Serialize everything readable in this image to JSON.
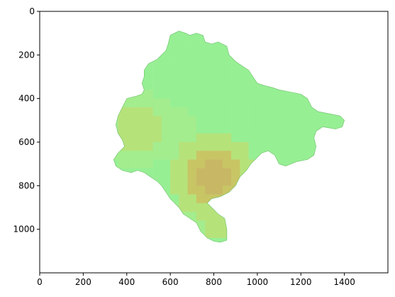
{
  "chart_data": {
    "type": "heatmap",
    "description_kind": "raster image with irregular land region",
    "xlim": [
      0,
      1600
    ],
    "ylim": [
      1200,
      0
    ],
    "x_ticks": [
      0,
      200,
      400,
      600,
      800,
      1000,
      1200,
      1400
    ],
    "y_ticks": [
      0,
      200,
      400,
      600,
      800,
      1000
    ],
    "title": "",
    "xlabel": "",
    "ylabel": "",
    "grid": false,
    "colors": {
      "base_green": "#97ef94",
      "light_green": "#a3ed8e",
      "yellow_green": "#b6e27a",
      "olive": "#c8c565",
      "tan": "#c8b865",
      "outline": "#6abf68"
    }
  }
}
